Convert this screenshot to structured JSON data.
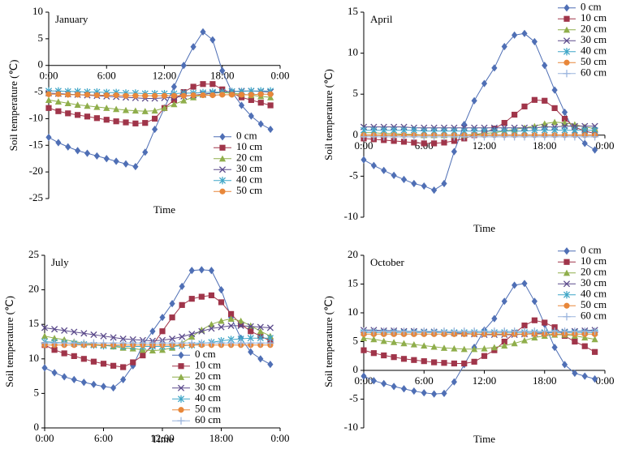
{
  "chart_data": [
    {
      "type": "line",
      "title": "January",
      "y_label": "Soil temperature (℃)",
      "x_label": "Time",
      "x": [
        0,
        1,
        2,
        3,
        4,
        5,
        6,
        7,
        8,
        9,
        10,
        11,
        12,
        13,
        14,
        15,
        16,
        17,
        18,
        19,
        20,
        21,
        22,
        23
      ],
      "xlim": [
        0,
        24
      ],
      "xticks": [
        {
          "value": 0,
          "label": "0:00"
        },
        {
          "value": 6,
          "label": "6:00"
        },
        {
          "value": 12,
          "label": "12:00"
        },
        {
          "value": 18,
          "label": "18:00"
        },
        {
          "value": 24,
          "label": "0:00"
        }
      ],
      "ylim": [
        -25,
        10
      ],
      "yticks": [
        -25,
        -20,
        -15,
        -10,
        -5,
        0,
        5,
        10
      ],
      "legend": "lower right",
      "series": [
        {
          "name": "0 cm",
          "color": "#4f6fb5",
          "marker": "diamond",
          "values": [
            -13.5,
            -14.5,
            -15.3,
            -16,
            -16.5,
            -17,
            -17.5,
            -18,
            -18.5,
            -19,
            -16.3,
            -12,
            -8,
            -4,
            0,
            3.5,
            6.3,
            4.8,
            -1,
            -5,
            -7.5,
            -9.5,
            -11,
            -12
          ]
        },
        {
          "name": "10 cm",
          "color": "#a0354a",
          "marker": "square",
          "values": [
            -8,
            -8.6,
            -9,
            -9.3,
            -9.6,
            -9.9,
            -10.2,
            -10.5,
            -10.7,
            -10.9,
            -10.8,
            -10,
            -8,
            -6.5,
            -5,
            -4,
            -3.5,
            -3.5,
            -4.5,
            -5.2,
            -6,
            -6.5,
            -7,
            -7.5
          ]
        },
        {
          "name": "20 cm",
          "color": "#8fae4b",
          "marker": "triangle",
          "values": [
            -6.5,
            -6.8,
            -7.1,
            -7.4,
            -7.6,
            -7.8,
            -8,
            -8.2,
            -8.4,
            -8.5,
            -8.6,
            -8.5,
            -8,
            -7.3,
            -6.6,
            -6,
            -5.5,
            -5.2,
            -5.1,
            -5.2,
            -5.4,
            -5.6,
            -5.8,
            -6
          ]
        },
        {
          "name": "30 cm",
          "color": "#5b4a8b",
          "marker": "x",
          "values": [
            -5.2,
            -5.3,
            -5.4,
            -5.5,
            -5.6,
            -5.7,
            -5.8,
            -5.9,
            -6,
            -6.1,
            -6.2,
            -6.2,
            -6.1,
            -6,
            -5.8,
            -5.6,
            -5.4,
            -5.2,
            -5,
            -4.9,
            -4.8,
            -4.8,
            -4.9,
            -5
          ]
        },
        {
          "name": "40 cm",
          "color": "#3fa6c7",
          "marker": "star",
          "values": [
            -4.8,
            -4.8,
            -4.9,
            -4.9,
            -5,
            -5,
            -5.1,
            -5.1,
            -5.2,
            -5.2,
            -5.3,
            -5.3,
            -5.3,
            -5.3,
            -5.2,
            -5.2,
            -5.1,
            -5,
            -5,
            -4.9,
            -4.9,
            -4.8,
            -4.8,
            -4.8
          ]
        },
        {
          "name": "50 cm",
          "color": "#e8873a",
          "marker": "circle",
          "values": [
            -5.4,
            -5.4,
            -5.5,
            -5.5,
            -5.5,
            -5.6,
            -5.6,
            -5.6,
            -5.7,
            -5.7,
            -5.7,
            -5.7,
            -5.7,
            -5.7,
            -5.7,
            -5.6,
            -5.6,
            -5.6,
            -5.5,
            -5.5,
            -5.5,
            -5.5,
            -5.4,
            -5.4
          ]
        }
      ]
    },
    {
      "type": "line",
      "title": "April",
      "y_label": "Soil temperature (℃)",
      "x_label": "Time",
      "x": [
        0,
        1,
        2,
        3,
        4,
        5,
        6,
        7,
        8,
        9,
        10,
        11,
        12,
        13,
        14,
        15,
        16,
        17,
        18,
        19,
        20,
        21,
        22,
        23
      ],
      "xlim": [
        0,
        24
      ],
      "xticks": [
        {
          "value": 0,
          "label": "0:00"
        },
        {
          "value": 6,
          "label": "6:00"
        },
        {
          "value": 12,
          "label": "12:00"
        },
        {
          "value": 18,
          "label": "18:00"
        },
        {
          "value": 24,
          "label": "0:00"
        }
      ],
      "ylim": [
        -10,
        15
      ],
      "yticks": [
        -10,
        -5,
        0,
        5,
        10,
        15
      ],
      "legend": "upper right",
      "series": [
        {
          "name": "0 cm",
          "color": "#4f6fb5",
          "marker": "diamond",
          "values": [
            -3,
            -3.7,
            -4.3,
            -4.9,
            -5.4,
            -5.9,
            -6.2,
            -6.7,
            -5.9,
            -2,
            1.3,
            4.2,
            6.3,
            8.2,
            10.8,
            12.2,
            12.4,
            11.4,
            8.5,
            5.5,
            2.8,
            0.2,
            -1,
            -1.8
          ]
        },
        {
          "name": "10 cm",
          "color": "#a0354a",
          "marker": "square",
          "values": [
            -0.4,
            -0.5,
            -0.6,
            -0.7,
            -0.8,
            -0.9,
            -1,
            -1,
            -0.9,
            -0.7,
            -0.4,
            0,
            0.3,
            0.8,
            1.5,
            2.5,
            3.5,
            4.3,
            4.2,
            3.3,
            2,
            1,
            0.5,
            0.2
          ]
        },
        {
          "name": "20 cm",
          "color": "#8fae4b",
          "marker": "triangle",
          "values": [
            0.3,
            0.3,
            0.2,
            0.2,
            0.1,
            0.1,
            0,
            0,
            0,
            0,
            0,
            0.1,
            0.2,
            0.3,
            0.5,
            0.7,
            0.9,
            1.1,
            1.4,
            1.6,
            1.5,
            1.3,
            1,
            0.8
          ]
        },
        {
          "name": "30 cm",
          "color": "#5b4a8b",
          "marker": "x",
          "values": [
            1,
            1,
            1,
            1,
            1,
            0.9,
            0.9,
            0.9,
            0.9,
            0.9,
            0.9,
            0.9,
            0.9,
            0.9,
            0.9,
            0.9,
            0.9,
            0.9,
            1,
            1,
            1.1,
            1.1,
            1.1,
            1.1
          ]
        },
        {
          "name": "40 cm",
          "color": "#3fa6c7",
          "marker": "star",
          "values": [
            0.6,
            0.6,
            0.6,
            0.6,
            0.6,
            0.6,
            0.5,
            0.5,
            0.5,
            0.5,
            0.5,
            0.5,
            0.5,
            0.5,
            0.5,
            0.5,
            0.5,
            0.6,
            0.6,
            0.6,
            0.6,
            0.6,
            0.6,
            0.6
          ]
        },
        {
          "name": "50 cm",
          "color": "#e8873a",
          "marker": "circle",
          "values": [
            0,
            0,
            0,
            0,
            0,
            0,
            0,
            0,
            0,
            0,
            0,
            0,
            0,
            0,
            0,
            0,
            0,
            0,
            0,
            0,
            0,
            0,
            0,
            0
          ]
        },
        {
          "name": "60 cm",
          "color": "#9bb5de",
          "marker": "plus",
          "values": [
            -0.2,
            -0.2,
            -0.2,
            -0.2,
            -0.2,
            -0.2,
            -0.2,
            -0.2,
            -0.2,
            -0.2,
            -0.2,
            -0.2,
            -0.2,
            -0.2,
            -0.2,
            -0.2,
            -0.2,
            -0.2,
            -0.2,
            -0.2,
            -0.2,
            -0.2,
            -0.2,
            -0.2
          ]
        }
      ]
    },
    {
      "type": "line",
      "title": "July",
      "y_label": "Soil temperature (℃)",
      "x_label": "Time",
      "x": [
        0,
        1,
        2,
        3,
        4,
        5,
        6,
        7,
        8,
        9,
        10,
        11,
        12,
        13,
        14,
        15,
        16,
        17,
        18,
        19,
        20,
        21,
        22,
        23
      ],
      "xlim": [
        0,
        24
      ],
      "xticks": [
        {
          "value": 0,
          "label": "0:00"
        },
        {
          "value": 6,
          "label": "6:00"
        },
        {
          "value": 12,
          "label": "12:00"
        },
        {
          "value": 18,
          "label": "18:00"
        },
        {
          "value": 24,
          "label": "0:00"
        }
      ],
      "ylim": [
        0,
        25
      ],
      "yticks": [
        0,
        5,
        10,
        15,
        20,
        25
      ],
      "legend": "lower center",
      "series": [
        {
          "name": "0 cm",
          "color": "#4f6fb5",
          "marker": "diamond",
          "values": [
            8.7,
            8,
            7.4,
            7,
            6.6,
            6.3,
            6,
            5.8,
            7,
            9,
            12,
            14,
            16,
            18,
            20.5,
            22.8,
            22.9,
            22.8,
            20,
            16,
            13,
            11,
            10,
            9.2
          ]
        },
        {
          "name": "10 cm",
          "color": "#a0354a",
          "marker": "square",
          "values": [
            12,
            11.3,
            10.8,
            10.4,
            10,
            9.6,
            9.3,
            9,
            8.8,
            9.5,
            10.5,
            12,
            14,
            16,
            17.8,
            18.7,
            19,
            19.2,
            18.2,
            16.5,
            15,
            14,
            13.3,
            12.6
          ]
        },
        {
          "name": "20 cm",
          "color": "#8fae4b",
          "marker": "triangle",
          "values": [
            13.3,
            13,
            12.8,
            12.5,
            12.3,
            12.1,
            12,
            11.8,
            11.6,
            11.5,
            11.3,
            11.2,
            11.3,
            11.6,
            12.3,
            13.2,
            14.2,
            15,
            15.5,
            15.8,
            15.5,
            14.8,
            14,
            13.3
          ]
        },
        {
          "name": "30 cm",
          "color": "#5b4a8b",
          "marker": "x",
          "values": [
            14.5,
            14.3,
            14.1,
            13.9,
            13.7,
            13.5,
            13.3,
            13.1,
            12.9,
            12.8,
            12.7,
            12.6,
            12.7,
            12.9,
            13.2,
            13.6,
            14,
            14.4,
            14.6,
            14.8,
            14.8,
            14.7,
            14.6,
            14.5
          ]
        },
        {
          "name": "40 cm",
          "color": "#3fa6c7",
          "marker": "star",
          "values": [
            12.5,
            12.4,
            12.3,
            12.2,
            12.1,
            12,
            11.9,
            11.9,
            11.8,
            11.8,
            11.8,
            11.8,
            11.8,
            11.8,
            11.9,
            12,
            12.2,
            12.4,
            12.6,
            12.8,
            12.9,
            13,
            13,
            13
          ]
        },
        {
          "name": "50 cm",
          "color": "#e8873a",
          "marker": "circle",
          "values": [
            12,
            12,
            12,
            12,
            12,
            12,
            12,
            12,
            12,
            12,
            12,
            12,
            12,
            12,
            12,
            12,
            12,
            12,
            12,
            12,
            12,
            12,
            12,
            12
          ]
        },
        {
          "name": "60 cm",
          "color": "#9bb5de",
          "marker": "plus",
          "values": [
            12.3,
            12.3,
            12.3,
            12.3,
            12.3,
            12.3,
            12.3,
            12.3,
            12.3,
            12.3,
            12.3,
            12.3,
            12.3,
            12.3,
            12.3,
            12.3,
            12.3,
            12.3,
            12.3,
            12.3,
            12.3,
            12.3,
            12.3,
            12.3
          ]
        }
      ]
    },
    {
      "type": "line",
      "title": "October",
      "y_label": "Soil temperature (℃)",
      "x_label": "Time",
      "x": [
        0,
        1,
        2,
        3,
        4,
        5,
        6,
        7,
        8,
        9,
        10,
        11,
        12,
        13,
        14,
        15,
        16,
        17,
        18,
        19,
        20,
        21,
        22,
        23
      ],
      "xlim": [
        0,
        24
      ],
      "xticks": [
        {
          "value": 0,
          "label": "0:00"
        },
        {
          "value": 6,
          "label": "6:00"
        },
        {
          "value": 12,
          "label": "12:00"
        },
        {
          "value": 18,
          "label": "18:00"
        },
        {
          "value": 24,
          "label": "0:00"
        }
      ],
      "ylim": [
        -10,
        20
      ],
      "yticks": [
        -10,
        -5,
        0,
        5,
        10,
        15,
        20
      ],
      "legend": "upper right",
      "series": [
        {
          "name": "0 cm",
          "color": "#4f6fb5",
          "marker": "diamond",
          "values": [
            -1,
            -1.8,
            -2.3,
            -2.8,
            -3.2,
            -3.6,
            -3.9,
            -4.1,
            -4,
            -2,
            1,
            4,
            7,
            9,
            12,
            14.8,
            15.1,
            12,
            8,
            4,
            1,
            -0.5,
            -1,
            -1.5
          ]
        },
        {
          "name": "10 cm",
          "color": "#a0354a",
          "marker": "square",
          "values": [
            3.5,
            3,
            2.6,
            2.3,
            2,
            1.8,
            1.6,
            1.4,
            1.3,
            1.2,
            1.2,
            1.5,
            2.5,
            3.5,
            5,
            6.5,
            7.8,
            8.7,
            8.3,
            7.5,
            6,
            5,
            4.2,
            3.2
          ]
        },
        {
          "name": "20 cm",
          "color": "#8fae4b",
          "marker": "triangle",
          "values": [
            5.6,
            5.4,
            5.1,
            4.9,
            4.7,
            4.5,
            4.3,
            4.1,
            3.9,
            3.8,
            3.7,
            3.7,
            3.8,
            4,
            4.3,
            4.7,
            5.2,
            5.7,
            6,
            6.2,
            6.2,
            6,
            5.7,
            5.4
          ]
        },
        {
          "name": "30 cm",
          "color": "#5b4a8b",
          "marker": "x",
          "values": [
            7,
            7,
            6.9,
            6.9,
            6.8,
            6.8,
            6.7,
            6.7,
            6.6,
            6.5,
            6.4,
            6.3,
            6.2,
            6.2,
            6.2,
            6.2,
            6.3,
            6.4,
            6.5,
            6.6,
            6.7,
            6.8,
            6.9,
            7
          ]
        },
        {
          "name": "40 cm",
          "color": "#3fa6c7",
          "marker": "star",
          "values": [
            6.6,
            6.6,
            6.6,
            6.6,
            6.6,
            6.6,
            6.6,
            6.6,
            6.6,
            6.6,
            6.6,
            6.6,
            6.6,
            6.6,
            6.6,
            6.6,
            6.6,
            6.6,
            6.6,
            6.6,
            6.6,
            6.6,
            6.6,
            6.6
          ]
        },
        {
          "name": "50 cm",
          "color": "#e8873a",
          "marker": "circle",
          "values": [
            6.3,
            6.3,
            6.3,
            6.3,
            6.3,
            6.3,
            6.3,
            6.3,
            6.3,
            6.3,
            6.3,
            6.3,
            6.3,
            6.3,
            6.3,
            6.3,
            6.3,
            6.3,
            6.3,
            6.3,
            6.3,
            6.3,
            6.3,
            6.3
          ]
        },
        {
          "name": "60 cm",
          "color": "#9bb5de",
          "marker": "plus",
          "values": [
            6.8,
            6.8,
            6.8,
            6.8,
            6.8,
            6.8,
            6.8,
            6.8,
            6.8,
            6.8,
            6.8,
            6.8,
            6.8,
            6.8,
            6.8,
            6.8,
            6.8,
            6.8,
            6.8,
            6.8,
            6.8,
            6.8,
            6.8,
            6.8
          ]
        }
      ]
    }
  ]
}
